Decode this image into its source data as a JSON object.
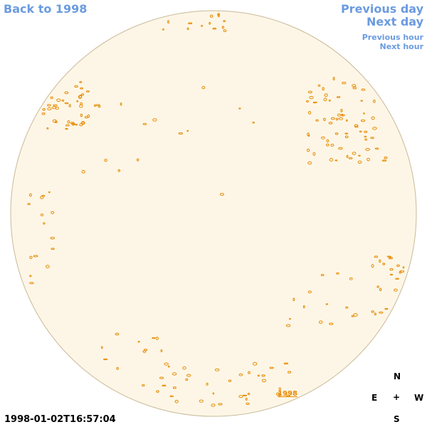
{
  "nav": {
    "back": "Back to 1998",
    "previous_day": "Previous day",
    "next_day": "Next day",
    "previous_hour": "Previous hour",
    "next_hour": "Next hour"
  },
  "disk_label": "1998",
  "timestamp": "1998-01-02T16:57:04",
  "compass": {
    "north": "N",
    "east": "E",
    "center": "+",
    "west": "W",
    "south": "S"
  }
}
